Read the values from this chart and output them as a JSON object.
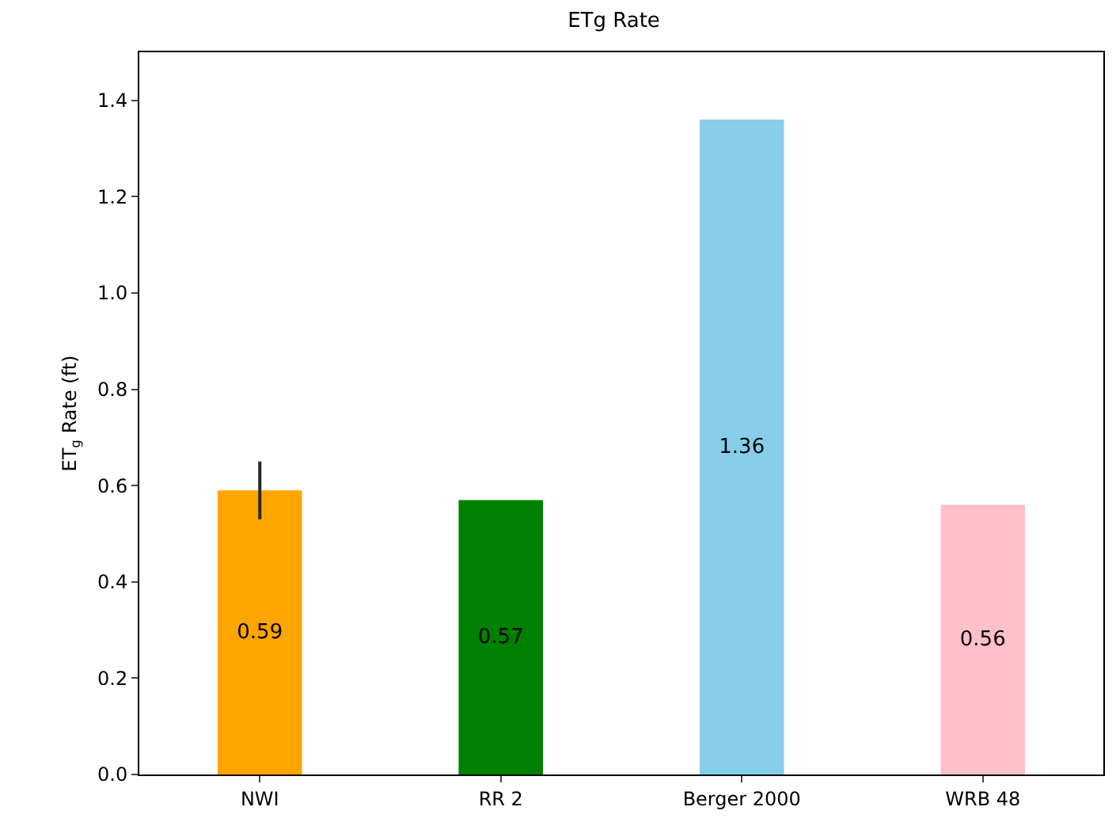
{
  "chart_data": {
    "type": "bar",
    "title": "ETg Rate",
    "ylabel": "ET$_{g}$ Rate (ft)",
    "categories": [
      "NWI",
      "RR 2",
      "Berger 2000",
      "WRB 48"
    ],
    "values": [
      0.59,
      0.57,
      1.36,
      0.56
    ],
    "colors": [
      "#ffa500",
      "#008000",
      "#87ceeb",
      "#ffc0cb"
    ],
    "errors": [
      [
        0.53,
        0.65
      ],
      null,
      null,
      null
    ],
    "data_labels": true,
    "grid": false,
    "legend": false,
    "ylim": [
      0,
      1.5
    ],
    "yticks": [
      {
        "value": 0,
        "label": "0.0"
      },
      {
        "value": 0.2,
        "label": "0.2"
      },
      {
        "value": 0.4,
        "label": "0.4"
      },
      {
        "value": 0.6,
        "label": "0.6"
      },
      {
        "value": 0.8,
        "label": "0.8"
      },
      {
        "value": 1,
        "label": "1.0"
      },
      {
        "value": 1.2,
        "label": "1.2"
      },
      {
        "value": 1.4,
        "label": "1.4"
      }
    ]
  }
}
